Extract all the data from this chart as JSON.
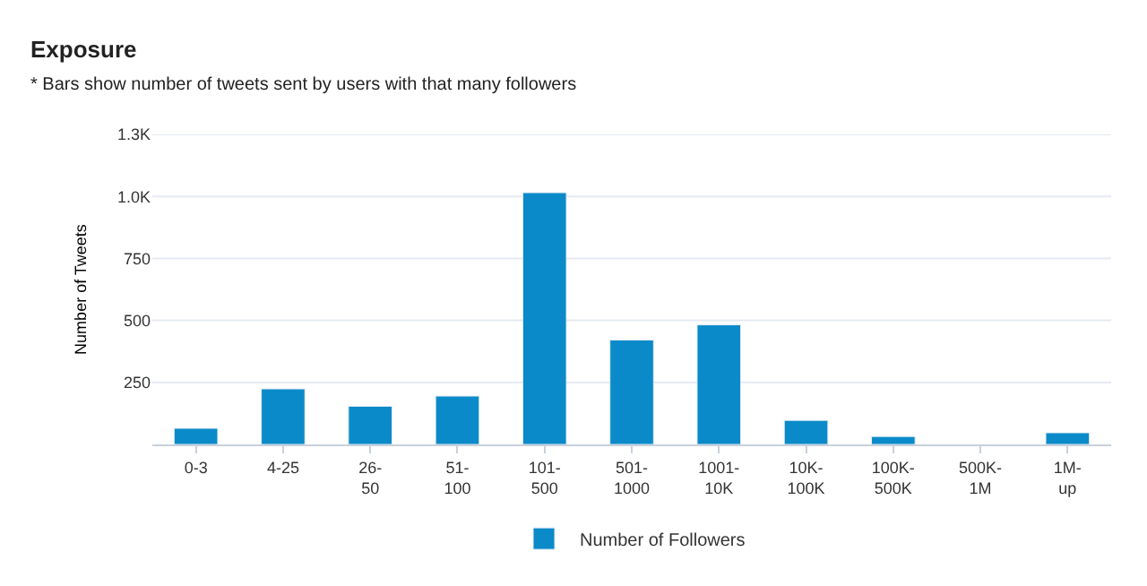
{
  "chart_data": {
    "type": "bar",
    "title": "Exposure",
    "subtitle": "* Bars show number of tweets sent by users with that many followers",
    "ylabel": "Number of Tweets",
    "categories": [
      "0-3",
      "4-25",
      "26-50",
      "51-100",
      "101-500",
      "501-1000",
      "1001-10K",
      "10K-100K",
      "100K-500K",
      "500K-1M",
      "1M-up"
    ],
    "series": [
      {
        "name": "Number of Followers",
        "color": "#0a8ac8",
        "values": [
          65,
          224,
          154,
          195,
          1015,
          421,
          482,
          97,
          32,
          null,
          47
        ]
      }
    ],
    "ylim": [
      0,
      1250
    ],
    "yticks": [
      250,
      500,
      750,
      {
        "value": 1000,
        "label": "1.0K"
      },
      {
        "value": 1250,
        "label": "1.3K"
      }
    ],
    "grid": "y",
    "legend": "bottom"
  }
}
